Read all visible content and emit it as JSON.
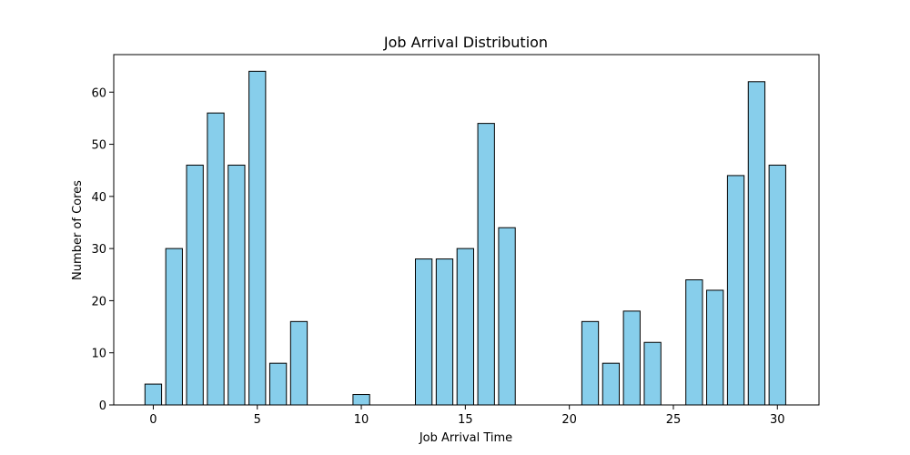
{
  "chart_data": {
    "type": "bar",
    "title": "Job Arrival Distribution",
    "xlabel": "Job Arrival Time",
    "ylabel": "Number of Cores",
    "x": [
      0,
      1,
      2,
      3,
      4,
      5,
      6,
      7,
      10,
      13,
      14,
      15,
      16,
      17,
      21,
      22,
      23,
      24,
      26,
      27,
      28,
      29,
      30
    ],
    "values": [
      4,
      30,
      46,
      56,
      46,
      64,
      8,
      16,
      2,
      28,
      28,
      30,
      54,
      34,
      16,
      8,
      18,
      12,
      24,
      22,
      44,
      62,
      46
    ],
    "xlim": [
      -1.9,
      32.0
    ],
    "ylim": [
      0,
      67.2
    ],
    "xticks": [
      0,
      5,
      10,
      15,
      20,
      25,
      30
    ],
    "yticks": [
      0,
      10,
      20,
      30,
      40,
      50,
      60
    ],
    "bar_color": "#87ceeb",
    "edge_color": "#000000",
    "grid": false,
    "legend": "none"
  }
}
